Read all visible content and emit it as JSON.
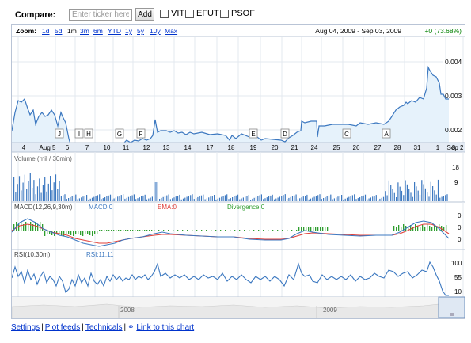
{
  "compare": {
    "label": "Compare:",
    "placeholder": "Enter ticker here",
    "add_label": "Add",
    "tickers": [
      "VIT",
      "EFUT",
      "PSOF"
    ]
  },
  "zoom": {
    "label": "Zoom:",
    "options": [
      "1d",
      "5d",
      "1m",
      "3m",
      "6m",
      "YTD",
      "1y",
      "5y",
      "10y",
      "Max"
    ],
    "selected": "1m",
    "date_range": "Aug 04, 2009  -  Sep 03, 2009",
    "change": "+0 (73.68%)"
  },
  "colors": {
    "line": "#3c78c0",
    "fill": "#e6f2fb",
    "ema": "#e0403a",
    "divergence": "#2e9e2e",
    "up": "#008000",
    "link": "#0033cc"
  },
  "chart_data": {
    "type": "line",
    "price": {
      "y_ticks": [
        "0.004",
        "0.003",
        "0.002"
      ],
      "x_labels": [
        "4",
        "Aug 5",
        "6",
        "7",
        "10",
        "11",
        "12",
        "13",
        "14",
        "17",
        "18",
        "19",
        "20",
        "21",
        "24",
        "25",
        "26",
        "27",
        "28",
        "31",
        "1",
        "Sep 2",
        "3"
      ],
      "news_flags": [
        "J",
        "I",
        "H",
        "G",
        "F",
        "E",
        "D",
        "C",
        "B",
        "A"
      ]
    },
    "volume": {
      "label": "Volume (mil / 30min)",
      "y_ticks": [
        "18",
        "9"
      ]
    },
    "macd": {
      "label": "MACD(12,26,9,30m)",
      "macd_label": "MACD:0",
      "ema_label": "EMA:0",
      "divergence_label": "Divergence:0",
      "y_ticks": [
        "0",
        "0",
        "0"
      ]
    },
    "rsi": {
      "label": "RSI(10,30m)",
      "value_label": "RSI:11.11",
      "y_ticks": [
        "100",
        "55",
        "10"
      ]
    },
    "navigator": {
      "labels": [
        "2008",
        "2009"
      ]
    }
  },
  "footer": {
    "links": [
      "Settings",
      "Plot feeds",
      "Technicals",
      "Link to this chart"
    ]
  }
}
